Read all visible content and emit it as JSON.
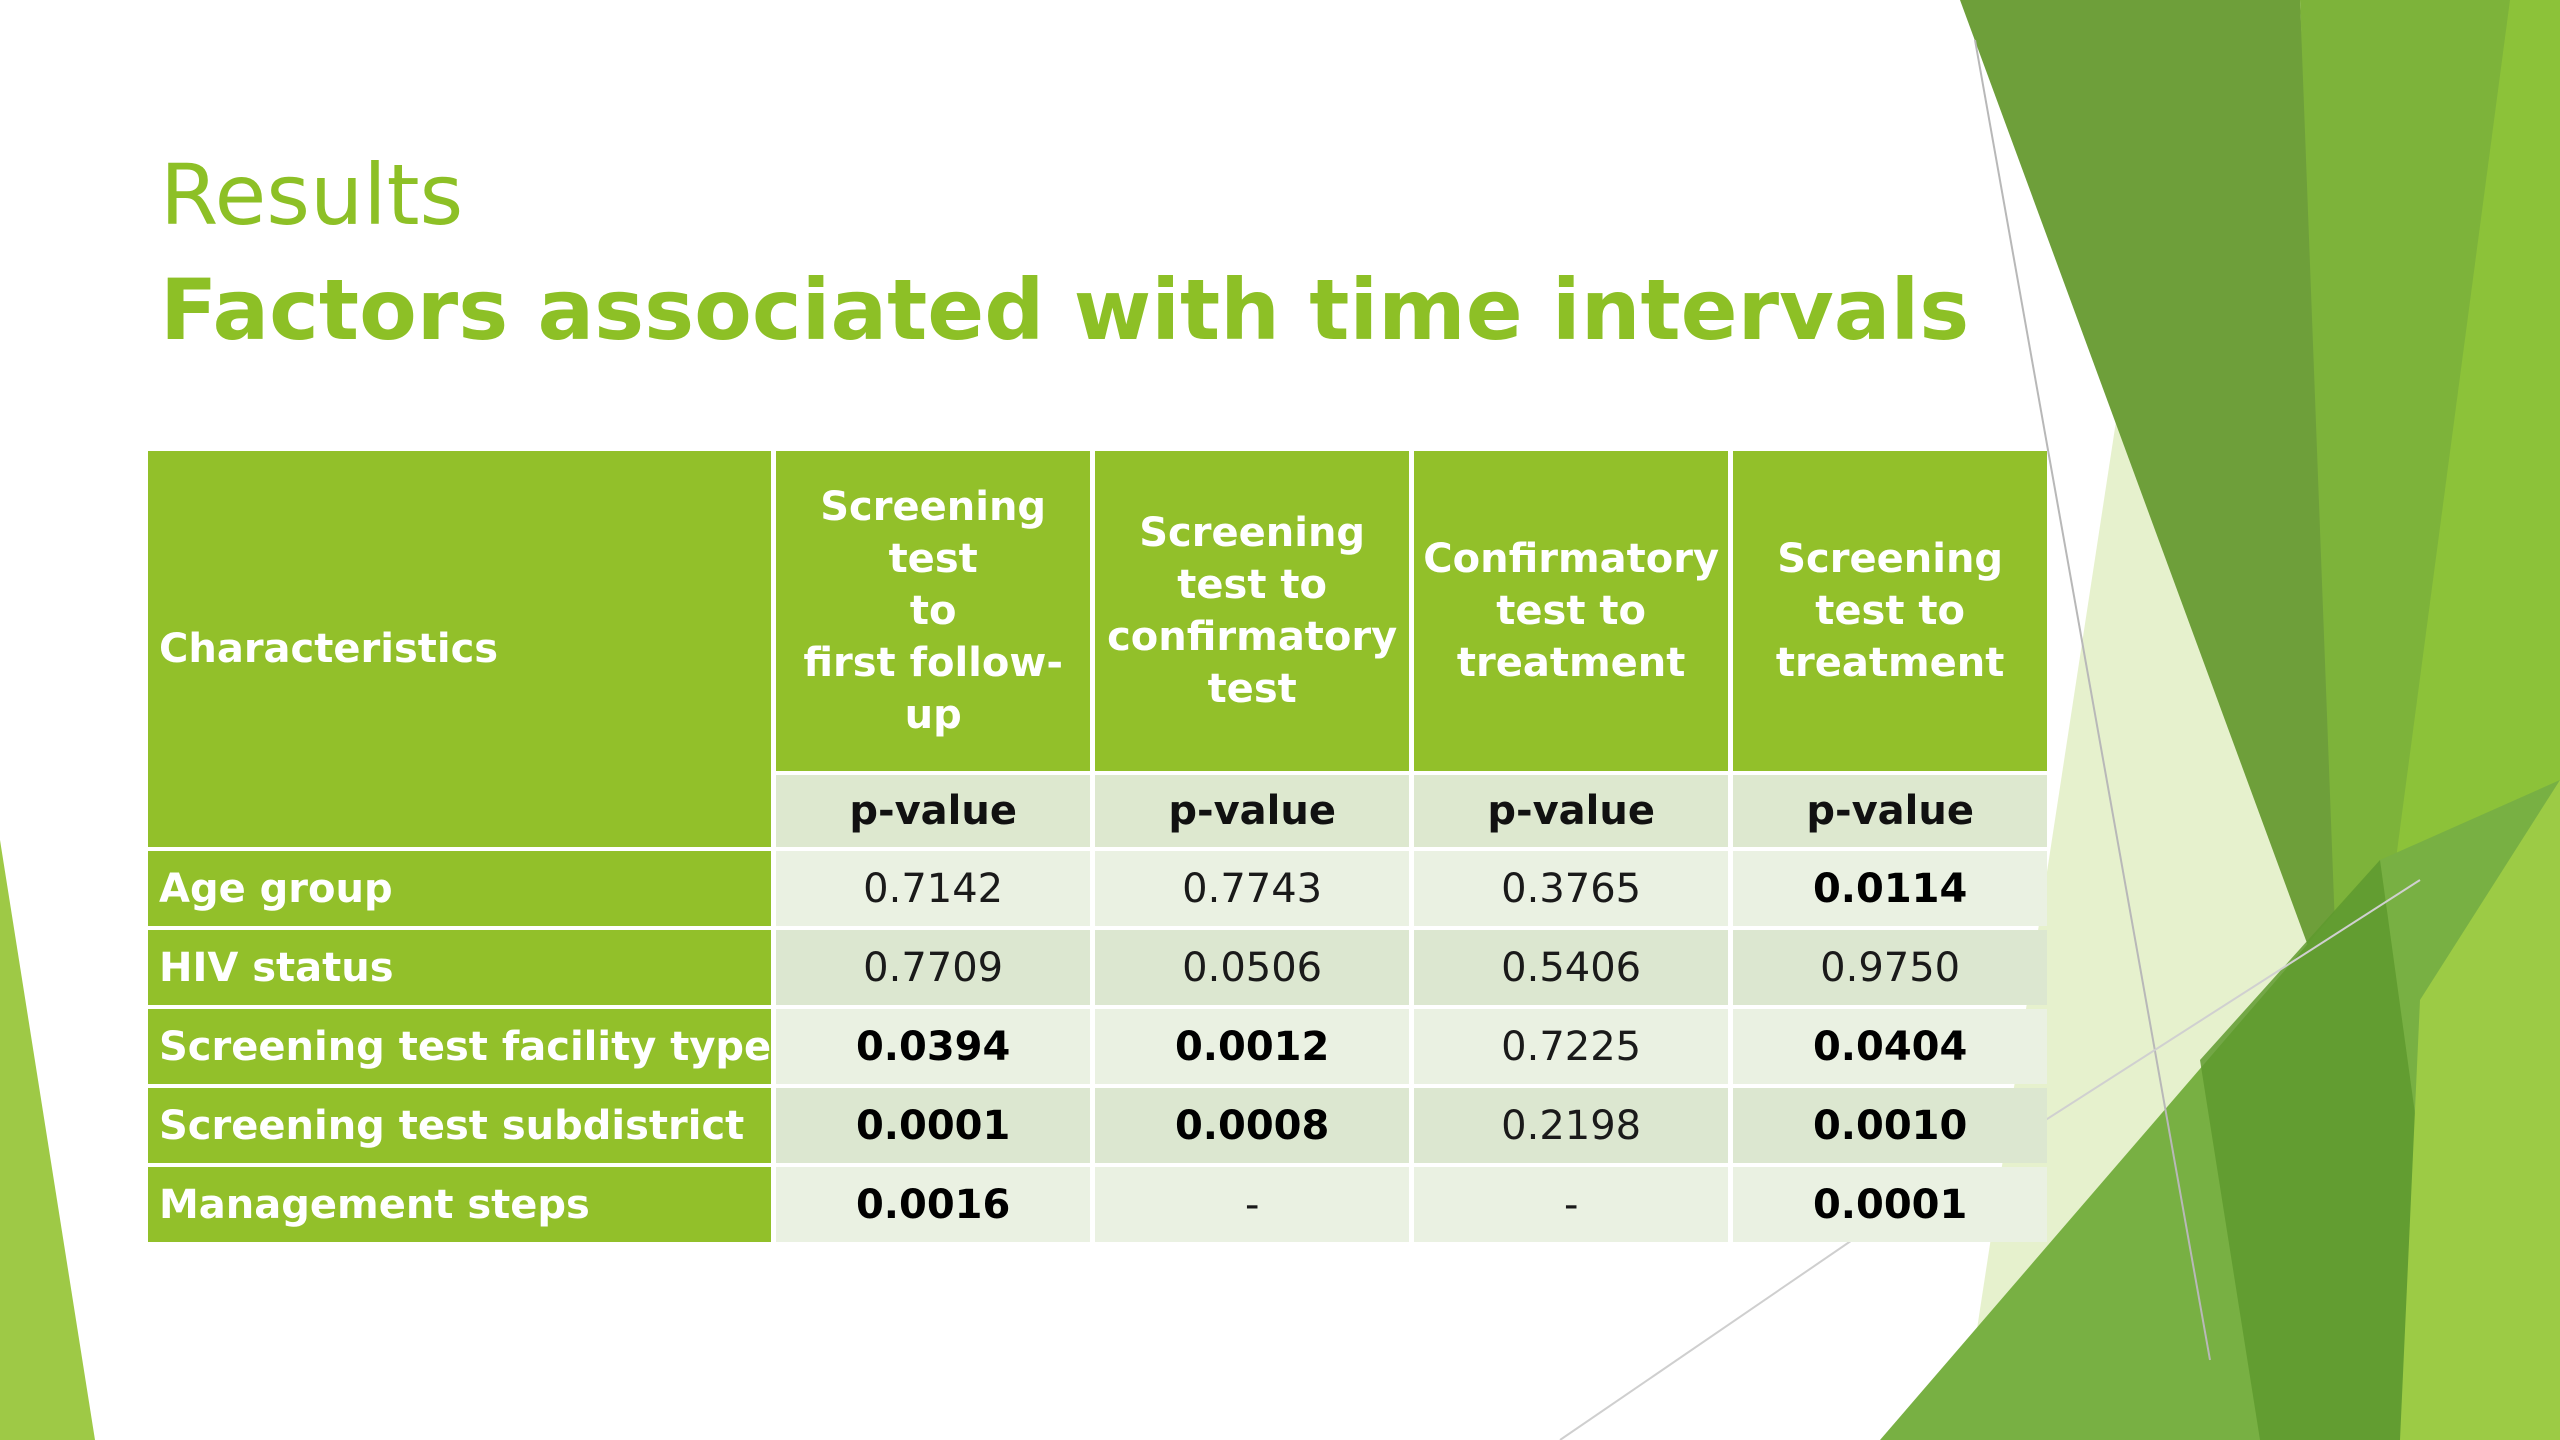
{
  "slide": {
    "title_line1": "Results",
    "title_line2": "Factors associated with time intervals"
  },
  "colors": {
    "accent_green": "#8DC026",
    "header_green": "#92C02A",
    "row_light": "#EAF1E2",
    "row_dark": "#DCE7D0"
  },
  "table": {
    "characteristics_header": "Characteristics",
    "columns": [
      {
        "lines": [
          "Screening",
          "test",
          "to",
          "first follow-",
          "up"
        ]
      },
      {
        "lines": [
          "Screening",
          "test to",
          "confirmatory",
          "test"
        ]
      },
      {
        "lines": [
          "Confirmatory",
          "test to",
          "treatment"
        ]
      },
      {
        "lines": [
          "Screening",
          "test to",
          "treatment"
        ]
      }
    ],
    "subheader": [
      "p-value",
      "p-value",
      "p-value",
      "p-value"
    ],
    "rows": [
      {
        "label": "Age group",
        "values": [
          {
            "text": "0.7142",
            "bold": false
          },
          {
            "text": "0.7743",
            "bold": false
          },
          {
            "text": "0.3765",
            "bold": false
          },
          {
            "text": "0.0114",
            "bold": true
          }
        ]
      },
      {
        "label": "HIV status",
        "values": [
          {
            "text": "0.7709",
            "bold": false
          },
          {
            "text": "0.0506",
            "bold": false
          },
          {
            "text": "0.5406",
            "bold": false
          },
          {
            "text": "0.9750",
            "bold": false
          }
        ]
      },
      {
        "label": "Screening test facility type",
        "values": [
          {
            "text": "0.0394",
            "bold": true
          },
          {
            "text": "0.0012",
            "bold": true
          },
          {
            "text": "0.7225",
            "bold": false
          },
          {
            "text": "0.0404",
            "bold": true
          }
        ]
      },
      {
        "label": "Screening test subdistrict",
        "values": [
          {
            "text": "0.0001",
            "bold": true
          },
          {
            "text": "0.0008",
            "bold": true
          },
          {
            "text": "0.2198",
            "bold": false
          },
          {
            "text": "0.0010",
            "bold": true
          }
        ]
      },
      {
        "label": "Management steps",
        "values": [
          {
            "text": "0.0016",
            "bold": true
          },
          {
            "text": "-",
            "bold": false
          },
          {
            "text": "-",
            "bold": false
          },
          {
            "text": "0.0001",
            "bold": true
          }
        ]
      }
    ]
  }
}
